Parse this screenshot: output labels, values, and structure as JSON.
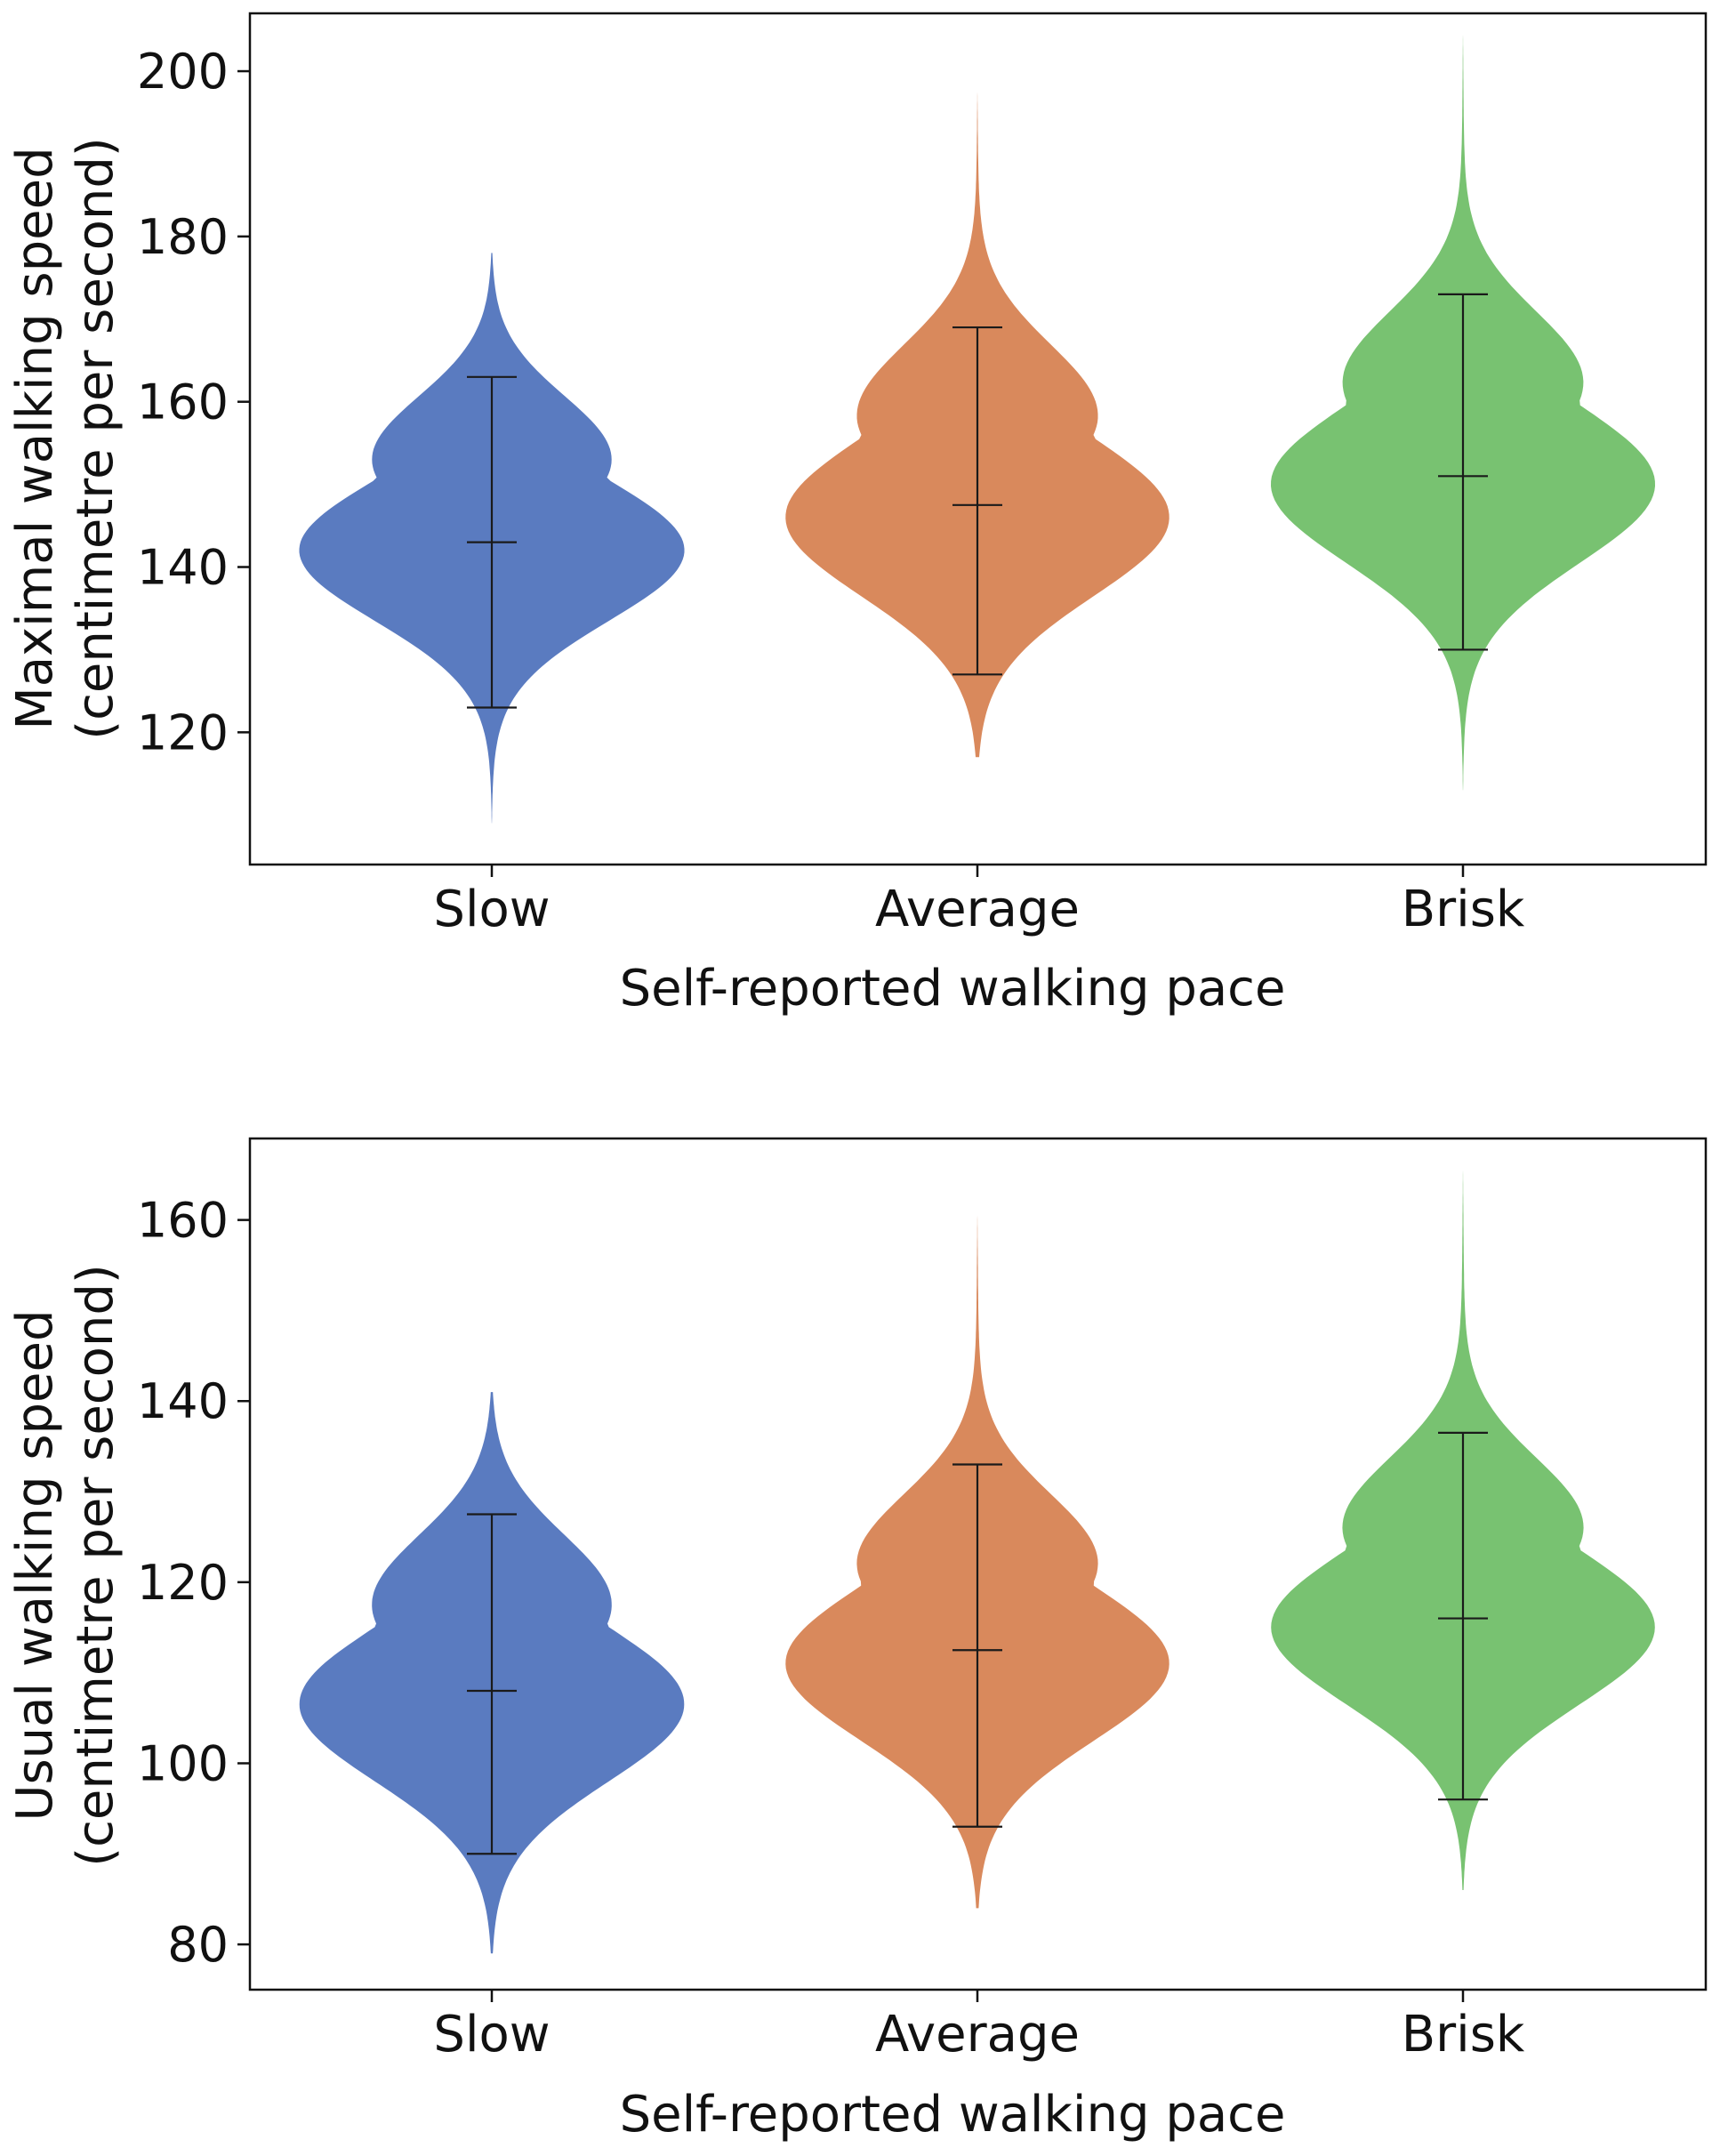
{
  "chart_data": [
    {
      "type": "violin",
      "xlabel": "Self-reported walking pace",
      "ylabel": [
        "Maximal walking speed",
        "(centimetre per second)"
      ],
      "ylim": [
        104,
        207
      ],
      "yticks": [
        120,
        140,
        160,
        180,
        200
      ],
      "categories": [
        "Slow",
        "Average",
        "Brisk"
      ],
      "colors": [
        "#5a7bc0",
        "#d9895c",
        "#78c271"
      ],
      "series": [
        {
          "name": "Slow",
          "min": 123,
          "mean": 143,
          "max": 163,
          "tail_low": 109,
          "tail_high": 178,
          "peak": 142,
          "spread": 8.5
        },
        {
          "name": "Average",
          "min": 127,
          "mean": 147.5,
          "max": 169,
          "tail_low": 117,
          "tail_high": 198,
          "peak": 146,
          "spread": 9.5
        },
        {
          "name": "Brisk",
          "min": 130,
          "mean": 151,
          "max": 173,
          "tail_low": 113,
          "tail_high": 205,
          "peak": 150,
          "spread": 9.5
        }
      ]
    },
    {
      "type": "violin",
      "xlabel": "Self-reported walking pace",
      "ylabel": [
        "Usual walking speed",
        "(centimetre per second)"
      ],
      "ylim": [
        75,
        169
      ],
      "yticks": [
        80,
        100,
        120,
        140,
        160
      ],
      "categories": [
        "Slow",
        "Average",
        "Brisk"
      ],
      "colors": [
        "#5a7bc0",
        "#d9895c",
        "#78c271"
      ],
      "series": [
        {
          "name": "Slow",
          "min": 90,
          "mean": 108,
          "max": 127.5,
          "tail_low": 79,
          "tail_high": 141,
          "peak": 106.5,
          "spread": 8.5
        },
        {
          "name": "Average",
          "min": 93,
          "mean": 112.5,
          "max": 133,
          "tail_low": 84,
          "tail_high": 161,
          "peak": 111,
          "spread": 8.5
        },
        {
          "name": "Brisk",
          "min": 96,
          "mean": 116,
          "max": 136.5,
          "tail_low": 86,
          "tail_high": 166,
          "peak": 115,
          "spread": 8.5
        }
      ]
    }
  ]
}
